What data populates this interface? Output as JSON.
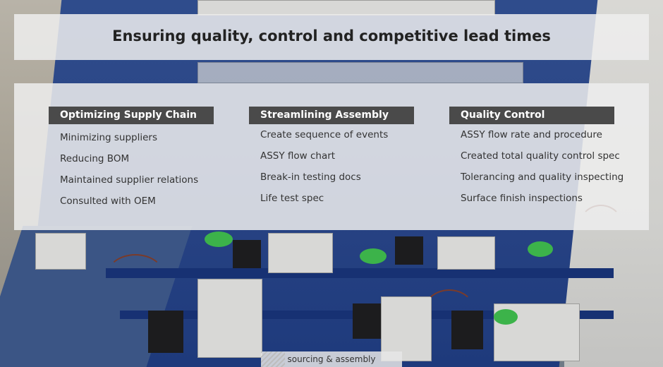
{
  "header": {
    "title": "Ensuring quality, control and competitive lead times"
  },
  "columns": [
    {
      "heading": "Optimizing Supply Chain",
      "items": [
        "Minimizing suppliers",
        "Reducing BOM",
        "Maintained supplier relations",
        "Consulted with OEM"
      ]
    },
    {
      "heading": "Streamlining Assembly",
      "items": [
        "Create sequence of events",
        "ASSY flow chart",
        "Break-in testing docs",
        "Life test spec"
      ]
    },
    {
      "heading": "Quality Control",
      "items": [
        "ASSY flow rate and procedure",
        "Created total quality control spec",
        "Tolerancing and quality inspecting",
        "Surface finish inspections"
      ]
    }
  ],
  "footer_tag": {
    "label": "sourcing & assembly"
  },
  "colors": {
    "overlay": "#eeeeee",
    "heading_bar": "#4a4a4a",
    "tray_blue": "#2a4585"
  }
}
